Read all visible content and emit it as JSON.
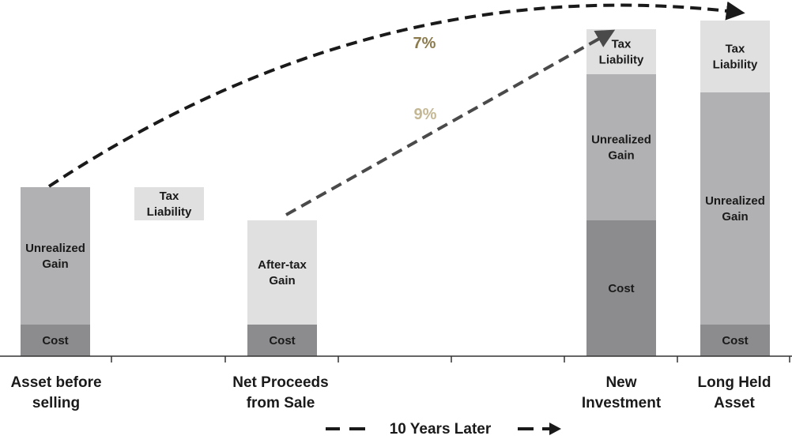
{
  "chart_data": {
    "type": "bar",
    "subtype": "stacked-waterfall",
    "title": "",
    "xlabel": "",
    "ylabel": "",
    "categories": [
      {
        "key": "asset",
        "lines": [
          "Asset before",
          "selling"
        ]
      },
      {
        "key": "tax",
        "lines": []
      },
      {
        "key": "net",
        "lines": [
          "Net Proceeds",
          "from Sale"
        ]
      },
      {
        "key": "newinv",
        "lines": [
          "New",
          "Investment"
        ]
      },
      {
        "key": "longheld",
        "lines": [
          "Long Held",
          "Asset"
        ]
      }
    ],
    "bars": [
      {
        "category": "asset",
        "segments": [
          {
            "label": [
              "Cost"
            ],
            "base": 0,
            "value": 40,
            "color": "#8c8c8e"
          },
          {
            "label": [
              "Unrealized",
              "Gain"
            ],
            "base": 40,
            "value": 174,
            "color": "#b1b1b3"
          }
        ]
      },
      {
        "category": "tax",
        "segments": [
          {
            "label": [
              "Tax",
              "Liability"
            ],
            "base": 172,
            "value": 42,
            "color": "#e0e0e1"
          }
        ]
      },
      {
        "category": "net",
        "segments": [
          {
            "label": [
              "Cost"
            ],
            "base": 0,
            "value": 40,
            "color": "#8c8c8e"
          },
          {
            "label": [
              "After-tax",
              "Gain"
            ],
            "base": 40,
            "value": 132,
            "color": "#e0e0e1"
          }
        ]
      },
      {
        "category": "newinv",
        "segments": [
          {
            "label": [
              "Cost"
            ],
            "base": 0,
            "value": 172,
            "color": "#8c8c8e"
          },
          {
            "label": [
              "Unrealized",
              "Gain"
            ],
            "base": 172,
            "value": 185,
            "color": "#b1b1b3"
          },
          {
            "label": [
              "Tax",
              "Liability"
            ],
            "base": 357,
            "value": 57,
            "color": "#e0e0e1"
          }
        ]
      },
      {
        "category": "longheld",
        "segments": [
          {
            "label": [
              "Cost"
            ],
            "base": 0,
            "value": 40,
            "color": "#8c8c8e"
          },
          {
            "label": [
              "Unrealized",
              "Gain"
            ],
            "base": 40,
            "value": 294,
            "color": "#b1b1b3"
          },
          {
            "label": [
              "Tax",
              "Liability"
            ],
            "base": 334,
            "value": 91,
            "color": "#e0e0e1"
          }
        ]
      }
    ],
    "growth_arrows": [
      {
        "from": "asset",
        "to": "longheld",
        "rate_label": "7%",
        "color": "#8b7a4c"
      },
      {
        "from": "net",
        "to": "newinv",
        "rate_label": "9%",
        "color": "#c4b894"
      }
    ],
    "timeline_label": "10 Years Later",
    "ylim": [
      0,
      440
    ],
    "grid": false,
    "legend": "none"
  }
}
